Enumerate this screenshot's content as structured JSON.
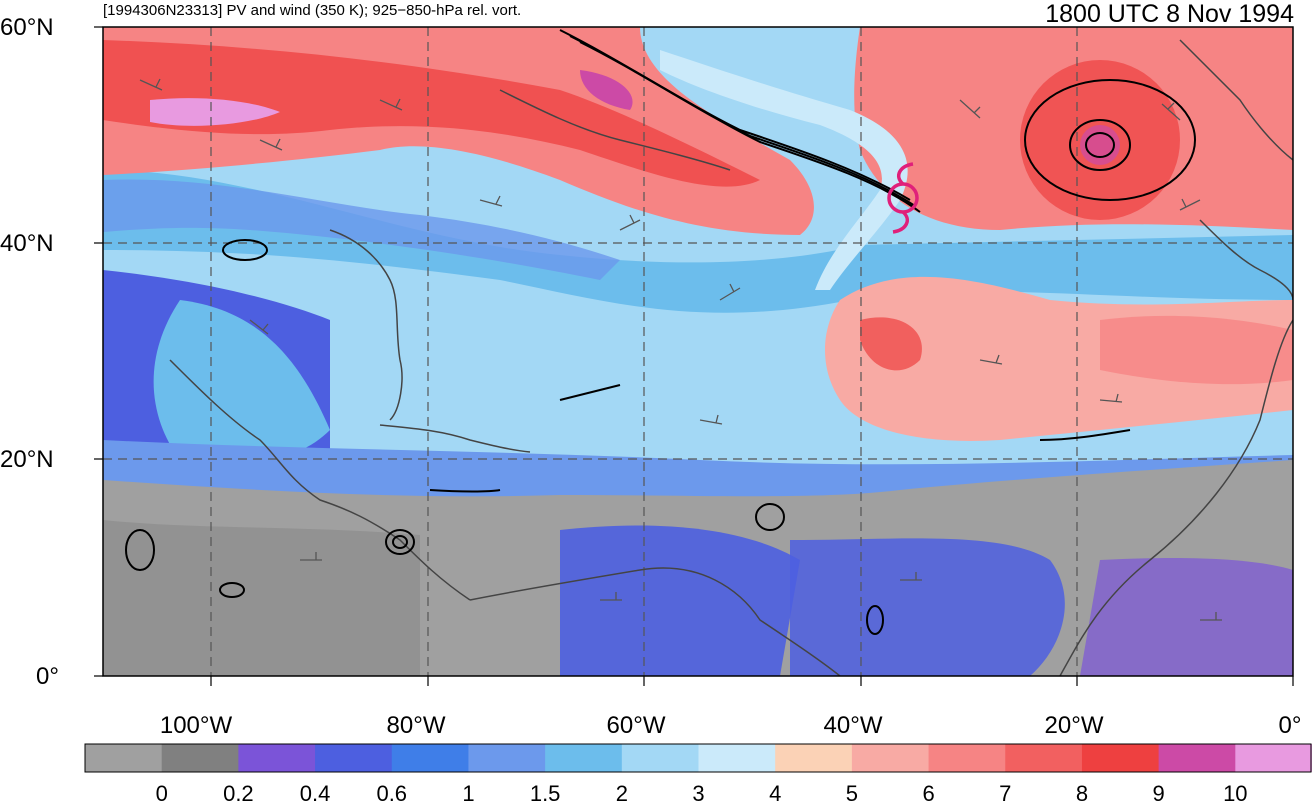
{
  "header": {
    "left_title": "[1994306N23313] PV and wind (350 K); 925−850-hPa rel. vort.",
    "right_title": "1800 UTC 8 Nov 1994"
  },
  "axes": {
    "lat_labels": [
      "60°N",
      "40°N",
      "20°N",
      "0°"
    ],
    "lon_labels": [
      "100°W",
      "80°W",
      "60°W",
      "40°W",
      "20°W",
      "0°"
    ],
    "extent": {
      "lon": [
        -110,
        0
      ],
      "lat": [
        0,
        60
      ]
    }
  },
  "colorbar": {
    "labels": [
      "0",
      "0.2",
      "0.4",
      "0.6",
      "1",
      "1.5",
      "2",
      "3",
      "4",
      "5",
      "6",
      "7",
      "8",
      "9",
      "10"
    ],
    "colors": [
      "#a0a0a0",
      "#808080",
      "#7b54d8",
      "#4d5fe0",
      "#3f7ee8",
      "#6c99ec",
      "#6cbdec",
      "#a3d8f5",
      "#cbeafa",
      "#fbd2b6",
      "#f8aaa4",
      "#f68484",
      "#f26060",
      "#ee4040",
      "#cc4aa6",
      "#e89ae0"
    ]
  },
  "storm_symbol": {
    "name": "tropical-cyclone-symbol",
    "color": "#e0207a"
  }
}
